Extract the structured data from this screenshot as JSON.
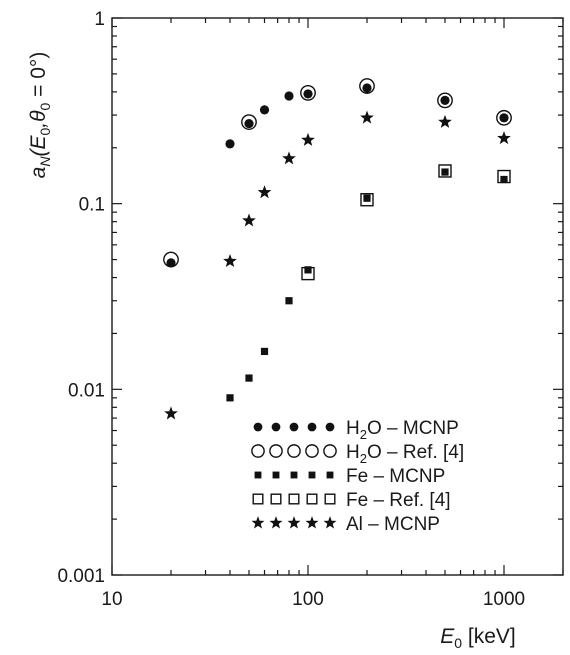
{
  "chart_data": {
    "type": "scatter",
    "x_scale": "log",
    "y_scale": "log",
    "xlim": [
      10,
      2000
    ],
    "ylim": [
      0.001,
      1
    ],
    "x_ticks": [
      {
        "value": 10,
        "label": "10"
      },
      {
        "value": 100,
        "label": "100"
      },
      {
        "value": 1000,
        "label": "1000"
      }
    ],
    "y_ticks": [
      {
        "value": 0.001,
        "label": "0.001"
      },
      {
        "value": 0.01,
        "label": "0.01"
      },
      {
        "value": 0.1,
        "label": "0.1"
      },
      {
        "value": 1,
        "label": "1"
      }
    ],
    "xlabel": {
      "main": "E",
      "sub": "0",
      "rest": " [keV]"
    },
    "ylabel": {
      "a": "a",
      "sub_N": "N",
      "open": "(E",
      "sub_0a": "0",
      "comma": ",θ",
      "sub_0b": "0",
      "tail": " = 0°)"
    },
    "legend_position": "bottom-right",
    "series": [
      {
        "name": "H₂O – MCNP",
        "label": {
          "pre": "H",
          "sub": "2",
          "post": "O – MCNP"
        },
        "marker": "filled-circle",
        "points": [
          [
            20,
            0.048
          ],
          [
            40,
            0.21
          ],
          [
            50,
            0.27
          ],
          [
            60,
            0.32
          ],
          [
            80,
            0.38
          ],
          [
            100,
            0.39
          ],
          [
            200,
            0.42
          ],
          [
            500,
            0.36
          ],
          [
            1000,
            0.29
          ]
        ]
      },
      {
        "name": "H₂O – Ref. [4]",
        "label": {
          "pre": "H",
          "sub": "2",
          "post": "O – Ref. [4]"
        },
        "marker": "open-circle",
        "points": [
          [
            20,
            0.05
          ],
          [
            50,
            0.275
          ],
          [
            100,
            0.395
          ],
          [
            200,
            0.43
          ],
          [
            500,
            0.36
          ],
          [
            1000,
            0.29
          ]
        ]
      },
      {
        "name": "Fe – MCNP",
        "label": {
          "pre": "Fe – MCNP",
          "sub": "",
          "post": ""
        },
        "marker": "filled-square",
        "points": [
          [
            40,
            0.009
          ],
          [
            50,
            0.0115
          ],
          [
            60,
            0.016
          ],
          [
            80,
            0.03
          ],
          [
            100,
            0.044
          ],
          [
            200,
            0.107
          ],
          [
            500,
            0.148
          ],
          [
            1000,
            0.135
          ]
        ]
      },
      {
        "name": "Fe – Ref. [4]",
        "label": {
          "pre": "Fe – Ref. [4]",
          "sub": "",
          "post": ""
        },
        "marker": "open-square",
        "points": [
          [
            100,
            0.042
          ],
          [
            200,
            0.105
          ],
          [
            500,
            0.15
          ],
          [
            1000,
            0.14
          ]
        ]
      },
      {
        "name": "Al – MCNP",
        "label": {
          "pre": "Al – MCNP",
          "sub": "",
          "post": ""
        },
        "marker": "star",
        "points": [
          [
            20,
            0.0074
          ],
          [
            40,
            0.049
          ],
          [
            50,
            0.081
          ],
          [
            60,
            0.115
          ],
          [
            80,
            0.175
          ],
          [
            100,
            0.22
          ],
          [
            200,
            0.29
          ],
          [
            500,
            0.275
          ],
          [
            1000,
            0.225
          ]
        ]
      }
    ]
  }
}
